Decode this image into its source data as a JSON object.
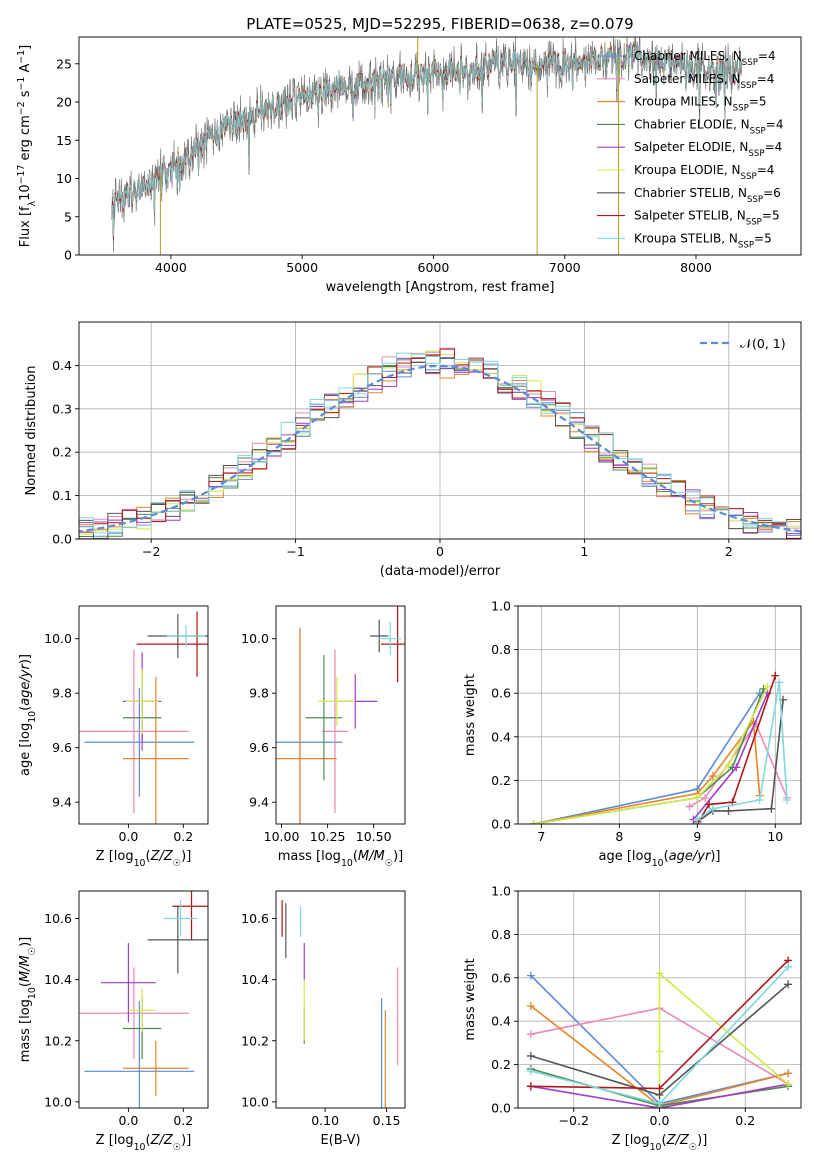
{
  "title": "PLATE=0525, MJD=52295, FIBERID=0638, z=0.079",
  "colors": {
    "Chabrier MILES": "#5b8bd8",
    "Salpeter MILES": "#e88ab8",
    "Kroupa MILES": "#e8842a",
    "Chabrier ELODIE": "#4e8a4e",
    "Salpeter ELODIE": "#a03ec8",
    "Kroupa ELODIE": "#d4e84a",
    "Chabrier STELIB": "#555555",
    "Salpeter STELIB": "#b01818",
    "Kroupa STELIB": "#7fd8dc"
  },
  "chart_data": [
    {
      "type": "line",
      "panel": "spectrum",
      "xlabel": "wavelength [Angstrom, rest frame]",
      "ylabel": "Flux [f_λ 10^-17 erg cm^-2 s^-1 A^-1]",
      "xlim": [
        3300,
        8800
      ],
      "ylim": [
        0,
        28.5
      ],
      "xticks": [
        4000,
        5000,
        6000,
        7000,
        8000
      ],
      "yticks": [
        0,
        5,
        10,
        15,
        20,
        25
      ],
      "legend_position": "top-right",
      "legend": [
        {
          "model": "Chabrier MILES",
          "nssp": "4"
        },
        {
          "model": "Salpeter MILES",
          "nssp": "4"
        },
        {
          "model": "Kroupa MILES",
          "nssp": "5"
        },
        {
          "model": "Chabrier ELODIE",
          "nssp": "4"
        },
        {
          "model": "Salpeter ELODIE",
          "nssp": "4"
        },
        {
          "model": "Kroupa ELODIE",
          "nssp": "4"
        },
        {
          "model": "Chabrier STELIB",
          "nssp": "6"
        },
        {
          "model": "Salpeter STELIB",
          "nssp": "5"
        },
        {
          "model": "Kroupa STELIB",
          "nssp": "5"
        }
      ],
      "continuum": [
        [
          3550,
          6.5
        ],
        [
          3700,
          8
        ],
        [
          3850,
          9.5
        ],
        [
          3950,
          11
        ],
        [
          4100,
          12.5
        ],
        [
          4250,
          14.5
        ],
        [
          4400,
          16.5
        ],
        [
          4600,
          18
        ],
        [
          4800,
          19.5
        ],
        [
          5000,
          20.5
        ],
        [
          5200,
          21.5
        ],
        [
          5500,
          22.5
        ],
        [
          5800,
          23.5
        ],
        [
          6000,
          24
        ],
        [
          6300,
          24.5
        ],
        [
          6600,
          25
        ],
        [
          6800,
          25
        ],
        [
          7000,
          25
        ],
        [
          7200,
          25.5
        ],
        [
          7500,
          26
        ],
        [
          7800,
          25
        ],
        [
          8000,
          24.5
        ],
        [
          8200,
          24.2
        ],
        [
          8350,
          23.8
        ]
      ],
      "spikes": [
        [
          3920,
          0
        ],
        [
          5880,
          28.5
        ],
        [
          6790,
          0
        ],
        [
          7410,
          0
        ]
      ]
    },
    {
      "type": "bar",
      "panel": "residuals",
      "xlabel": "(data-model)/error",
      "ylabel": "Normed distribution",
      "xlim": [
        -2.5,
        2.5
      ],
      "ylim": [
        0,
        0.5
      ],
      "xticks": [
        -2,
        -1,
        0,
        1,
        2
      ],
      "yticks": [
        0.0,
        0.1,
        0.2,
        0.3,
        0.4
      ],
      "grid": true,
      "legend_position": "top-right",
      "legend": "N(0,1)",
      "bin_width": 0.1,
      "series_peaks": [
        0.41,
        0.42,
        0.4,
        0.41,
        0.4,
        0.42,
        0.4,
        0.41,
        0.42
      ]
    },
    {
      "type": "scatter",
      "panel": "age_vs_Z",
      "xlabel": "Z [log10(Z/Z☉)]",
      "ylabel": "age [log10(age/yr)]",
      "xlim": [
        -0.18,
        0.29
      ],
      "ylim": [
        9.32,
        10.12
      ],
      "xticks": [
        0.0,
        0.2
      ],
      "yticks": [
        9.4,
        9.6,
        9.8,
        10.0
      ],
      "points": [
        {
          "model": "Chabrier MILES",
          "x": 0.04,
          "y": 9.62,
          "xerr": 0.2,
          "yerr": 0.2
        },
        {
          "model": "Salpeter MILES",
          "x": 0.02,
          "y": 9.66,
          "xerr": 0.2,
          "yerr": 0.3
        },
        {
          "model": "Kroupa MILES",
          "x": 0.1,
          "y": 9.56,
          "xerr": 0.12,
          "yerr": 0.3
        },
        {
          "model": "Chabrier ELODIE",
          "x": 0.05,
          "y": 9.71,
          "xerr": 0.07,
          "yerr": 0.08
        },
        {
          "model": "Salpeter ELODIE",
          "x": 0.05,
          "y": 9.77,
          "xerr": 0.07,
          "yerr": 0.18
        },
        {
          "model": "Kroupa ELODIE",
          "x": 0.05,
          "y": 9.77,
          "xerr": 0.06,
          "yerr": 0.12
        },
        {
          "model": "Chabrier STELIB",
          "x": 0.18,
          "y": 10.01,
          "xerr": 0.11,
          "yerr": 0.08
        },
        {
          "model": "Salpeter STELIB",
          "x": 0.25,
          "y": 9.98,
          "xerr": 0.22,
          "yerr": 0.12
        },
        {
          "model": "Kroupa STELIB",
          "x": 0.21,
          "y": 10.01,
          "xerr": 0.07,
          "yerr": 0.04
        }
      ]
    },
    {
      "type": "scatter",
      "panel": "age_vs_mass",
      "xlabel": "mass [log10(M/M☉)]",
      "ylabel": "",
      "xlim": [
        9.97,
        10.67
      ],
      "ylim": [
        9.32,
        10.12
      ],
      "xticks": [
        10.0,
        10.25,
        10.5
      ],
      "yticks": [
        9.4,
        9.6,
        9.8,
        10.0
      ],
      "points": [
        {
          "model": "Chabrier MILES",
          "x": 10.1,
          "y": 9.62,
          "xerr": 0.23,
          "yerr": 0.42
        },
        {
          "model": "Salpeter MILES",
          "x": 10.29,
          "y": 9.66,
          "xerr": 0.07,
          "yerr": 0.3
        },
        {
          "model": "Kroupa MILES",
          "x": 10.1,
          "y": 9.56,
          "xerr": 0.2,
          "yerr": 0.47
        },
        {
          "model": "Chabrier ELODIE",
          "x": 10.23,
          "y": 9.71,
          "xerr": 0.1,
          "yerr": 0.23
        },
        {
          "model": "Salpeter ELODIE",
          "x": 10.4,
          "y": 9.77,
          "xerr": 0.12,
          "yerr": 0.1
        },
        {
          "model": "Kroupa ELODIE",
          "x": 10.3,
          "y": 9.77,
          "xerr": 0.1,
          "yerr": 0.09
        },
        {
          "model": "Chabrier STELIB",
          "x": 10.53,
          "y": 10.01,
          "xerr": 0.05,
          "yerr": 0.06
        },
        {
          "model": "Salpeter STELIB",
          "x": 10.63,
          "y": 9.98,
          "xerr": 0.09,
          "yerr": 0.14
        },
        {
          "model": "Kroupa STELIB",
          "x": 10.59,
          "y": 10.0,
          "xerr": 0.06,
          "yerr": 0.06
        }
      ]
    },
    {
      "type": "line",
      "panel": "massweight_vs_age",
      "xlabel": "age [log10(age/yr)]",
      "ylabel": "mass weight",
      "xlim": [
        6.7,
        10.33
      ],
      "ylim": [
        0,
        1.0
      ],
      "xticks": [
        7,
        8,
        9,
        10
      ],
      "yticks": [
        0.0,
        0.2,
        0.4,
        0.6,
        0.8,
        1.0
      ],
      "grid": true,
      "series": [
        {
          "model": "Chabrier MILES",
          "x": [
            6.9,
            9.0,
            9.8
          ],
          "y": [
            0.0,
            0.16,
            0.6
          ]
        },
        {
          "model": "Salpeter MILES",
          "x": [
            8.9,
            9.1,
            9.75,
            10.15
          ],
          "y": [
            0.08,
            0.12,
            0.46,
            0.12
          ]
        },
        {
          "model": "Kroupa MILES",
          "x": [
            6.9,
            9.0,
            9.2,
            9.72,
            9.8
          ],
          "y": [
            0.0,
            0.14,
            0.22,
            0.47,
            0.13
          ]
        },
        {
          "model": "Chabrier ELODIE",
          "x": [
            6.9,
            9.0,
            9.45,
            9.85
          ],
          "y": [
            0.0,
            0.12,
            0.26,
            0.62
          ]
        },
        {
          "model": "Salpeter ELODIE",
          "x": [
            8.95,
            9.5,
            9.9
          ],
          "y": [
            0.02,
            0.26,
            0.6
          ]
        },
        {
          "model": "Kroupa ELODIE",
          "x": [
            6.9,
            9.0,
            9.4,
            9.9
          ],
          "y": [
            0.0,
            0.12,
            0.27,
            0.63
          ]
        },
        {
          "model": "Chabrier STELIB",
          "x": [
            9.0,
            9.2,
            9.4,
            9.95,
            10.1
          ],
          "y": [
            0.01,
            0.06,
            0.06,
            0.07,
            0.57
          ]
        },
        {
          "model": "Salpeter STELIB",
          "x": [
            9.0,
            9.15,
            9.45,
            10.0
          ],
          "y": [
            0.0,
            0.09,
            0.1,
            0.68
          ]
        },
        {
          "model": "Kroupa STELIB",
          "x": [
            9.0,
            9.2,
            9.8,
            10.05,
            10.15
          ],
          "y": [
            0.02,
            0.07,
            0.11,
            0.65,
            0.11
          ]
        }
      ]
    },
    {
      "type": "scatter",
      "panel": "mass_vs_Z",
      "xlabel": "Z [log10(Z/Z☉)]",
      "ylabel": "mass [log10(M/M☉)]",
      "xlim": [
        -0.18,
        0.29
      ],
      "ylim": [
        9.98,
        10.69
      ],
      "xticks": [
        0.0,
        0.2
      ],
      "yticks": [
        10.0,
        10.2,
        10.4,
        10.6
      ],
      "points": [
        {
          "model": "Chabrier MILES",
          "x": 0.04,
          "y": 10.1,
          "xerr": 0.2,
          "yerr": 0.23
        },
        {
          "model": "Salpeter MILES",
          "x": 0.02,
          "y": 10.29,
          "xerr": 0.2,
          "yerr": 0.15
        },
        {
          "model": "Kroupa MILES",
          "x": 0.1,
          "y": 10.11,
          "xerr": 0.12,
          "yerr": 0.09
        },
        {
          "model": "Chabrier ELODIE",
          "x": 0.05,
          "y": 10.24,
          "xerr": 0.07,
          "yerr": 0.1
        },
        {
          "model": "Salpeter ELODIE",
          "x": 0.0,
          "y": 10.39,
          "xerr": 0.1,
          "yerr": 0.13
        },
        {
          "model": "Kroupa ELODIE",
          "x": 0.05,
          "y": 10.3,
          "xerr": 0.05,
          "yerr": 0.07
        },
        {
          "model": "Chabrier STELIB",
          "x": 0.18,
          "y": 10.53,
          "xerr": 0.11,
          "yerr": 0.11
        },
        {
          "model": "Salpeter STELIB",
          "x": 0.23,
          "y": 10.64,
          "xerr": 0.07,
          "yerr": 0.11
        },
        {
          "model": "Kroupa STELIB",
          "x": 0.19,
          "y": 10.6,
          "xerr": 0.06,
          "yerr": 0.06
        }
      ]
    },
    {
      "type": "scatter",
      "panel": "mass_vs_EBV",
      "xlabel": "E(B-V)",
      "ylabel": "",
      "xlim": [
        0.06,
        0.165
      ],
      "ylim": [
        9.98,
        10.69
      ],
      "xticks": [
        0.1,
        0.15
      ],
      "yticks": [
        10.0,
        10.2,
        10.4,
        10.6
      ],
      "points": [
        {
          "model": "Chabrier MILES",
          "x": 0.146,
          "y": 10.1,
          "xerr": 0,
          "yerr": 0.24
        },
        {
          "model": "Salpeter MILES",
          "x": 0.159,
          "y": 10.28,
          "xerr": 0,
          "yerr": 0.16
        },
        {
          "model": "Kroupa MILES",
          "x": 0.149,
          "y": 10.11,
          "xerr": 0,
          "yerr": 0.19
        },
        {
          "model": "Chabrier ELODIE",
          "x": 0.083,
          "y": 10.25,
          "xerr": 0,
          "yerr": 0.06
        },
        {
          "model": "Salpeter ELODIE",
          "x": 0.083,
          "y": 10.46,
          "xerr": 0,
          "yerr": 0.06
        },
        {
          "model": "Kroupa ELODIE",
          "x": 0.083,
          "y": 10.3,
          "xerr": 0,
          "yerr": 0.1
        },
        {
          "model": "Chabrier STELIB",
          "x": 0.068,
          "y": 10.56,
          "xerr": 0,
          "yerr": 0.09
        },
        {
          "model": "Salpeter STELIB",
          "x": 0.065,
          "y": 10.6,
          "xerr": 0,
          "yerr": 0.06
        },
        {
          "model": "Kroupa STELIB",
          "x": 0.08,
          "y": 10.59,
          "xerr": 0,
          "yerr": 0.05
        }
      ]
    },
    {
      "type": "line",
      "panel": "massweight_vs_Z",
      "xlabel": "Z [log10(Z/Z☉)]",
      "ylabel": "mass weight",
      "xlim": [
        -0.33,
        0.33
      ],
      "ylim": [
        0,
        1.0
      ],
      "xticks": [
        -0.2,
        0.0,
        0.2
      ],
      "yticks": [
        0.0,
        0.2,
        0.4,
        0.6,
        0.8,
        1.0
      ],
      "grid": true,
      "series": [
        {
          "model": "Chabrier MILES",
          "x": [
            -0.3,
            0.0,
            0.3
          ],
          "y": [
            0.61,
            0.02,
            0.16
          ]
        },
        {
          "model": "Salpeter MILES",
          "x": [
            -0.3,
            0.0,
            0.3
          ],
          "y": [
            0.34,
            0.46,
            0.11
          ]
        },
        {
          "model": "Kroupa MILES",
          "x": [
            -0.3,
            0.0,
            0.3
          ],
          "y": [
            0.47,
            0.01,
            0.16
          ]
        },
        {
          "model": "Chabrier ELODIE",
          "x": [
            -0.3,
            0.0,
            0.3
          ],
          "y": [
            0.18,
            0.01,
            0.1
          ]
        },
        {
          "model": "Salpeter ELODIE",
          "x": [
            -0.3,
            0.0,
            0.3
          ],
          "y": [
            0.1,
            0.0,
            0.11
          ]
        },
        {
          "model": "Kroupa ELODIE",
          "x": [
            0.0,
            0.0,
            0.0,
            0.3
          ],
          "y": [
            0.0,
            0.26,
            0.62,
            0.11
          ]
        },
        {
          "model": "Chabrier STELIB",
          "x": [
            -0.3,
            0.0,
            0.3
          ],
          "y": [
            0.24,
            0.06,
            0.57
          ]
        },
        {
          "model": "Salpeter STELIB",
          "x": [
            -0.3,
            0.0,
            0.3
          ],
          "y": [
            0.1,
            0.09,
            0.68
          ]
        },
        {
          "model": "Kroupa STELIB",
          "x": [
            -0.3,
            0.0,
            0.3
          ],
          "y": [
            0.17,
            0.02,
            0.65
          ]
        }
      ]
    }
  ]
}
